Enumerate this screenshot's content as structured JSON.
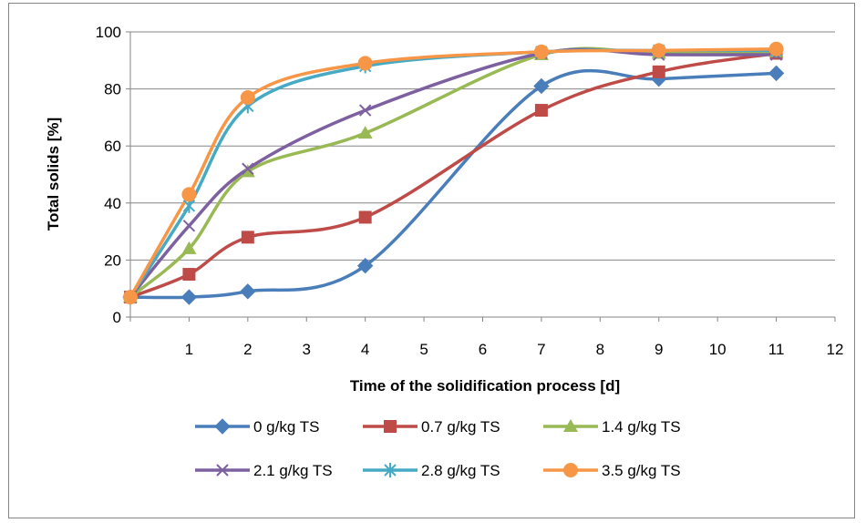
{
  "chart_data": {
    "type": "line",
    "xlabel": "Time of the solidification  process [d]",
    "ylabel": "Total solids  [%]",
    "xlim": [
      0,
      12
    ],
    "ylim": [
      0,
      100
    ],
    "x_ticks": [
      "1",
      "2",
      "3",
      "4",
      "5",
      "6",
      "7",
      "8",
      "9",
      "10",
      "11",
      "12"
    ],
    "y_ticks": [
      "0",
      "20",
      "40",
      "60",
      "80",
      "100"
    ],
    "grid": "horizontal",
    "legend_position": "bottom",
    "x": [
      0,
      1,
      2,
      4,
      7,
      9,
      11
    ],
    "series": [
      {
        "name": "0 g/kg TS",
        "color": "#4A7EBB",
        "marker": "diamond",
        "values": [
          7,
          7,
          9,
          18,
          81,
          83.5,
          85.5
        ]
      },
      {
        "name": "0.7 g/kg TS",
        "color": "#BE4B48",
        "marker": "square",
        "values": [
          7,
          15,
          28,
          35,
          72.5,
          86,
          92.5
        ]
      },
      {
        "name": "1.4 g/kg TS",
        "color": "#98B954",
        "marker": "triangle",
        "values": [
          7,
          24,
          51,
          64.5,
          92,
          92.5,
          93
        ]
      },
      {
        "name": "2.1 g/kg TS",
        "color": "#7D60A0",
        "marker": "x",
        "values": [
          7,
          32,
          52,
          72.5,
          92.5,
          92,
          92
        ]
      },
      {
        "name": "2.8 g/kg TS",
        "color": "#46AAC5",
        "marker": "star",
        "values": [
          7,
          39,
          74,
          88,
          93,
          93.5,
          93.5
        ]
      },
      {
        "name": "3.5 g/kg TS",
        "color": "#F79646",
        "marker": "circle",
        "values": [
          7,
          43,
          77,
          89,
          93,
          93.5,
          94
        ]
      }
    ]
  }
}
